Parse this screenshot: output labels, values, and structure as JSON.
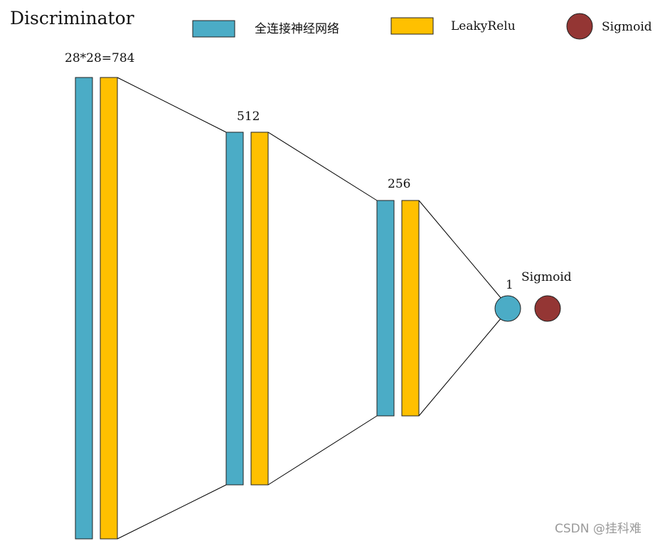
{
  "title": "Discriminator",
  "legend": {
    "fc_label": "全连接神经网络",
    "leaky_label": "LeakyRelu",
    "sigmoid_label": "Sigmoid"
  },
  "layers": {
    "input_size": "28*28=784",
    "hidden1_size": "512",
    "hidden2_size": "256",
    "output_size": "1",
    "output_activation": "Sigmoid"
  },
  "colors": {
    "fully_connected": "#4BACC6",
    "leaky_relu": "#FFC000",
    "sigmoid": "#943634"
  },
  "watermark": "CSDN @挂科难"
}
